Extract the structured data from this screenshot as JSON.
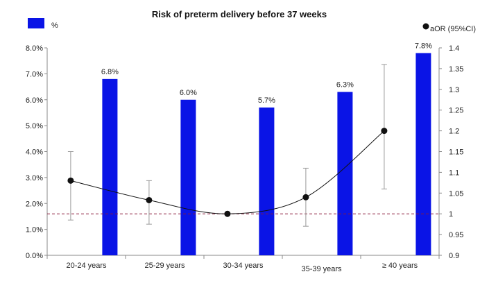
{
  "chart_data": {
    "type": "bar",
    "title": "Risk of preterm delivery before 37 weeks",
    "categories": [
      "20-24 years",
      "25-29 years",
      "30-34 years",
      "35-39 years",
      "≥ 40 years"
    ],
    "series": [
      {
        "name": "%",
        "axis": "left",
        "kind": "bar",
        "color": "#0a14e6",
        "values": [
          6.8,
          6.0,
          5.7,
          6.3,
          7.8
        ],
        "value_labels": [
          "6.8%",
          "6.0%",
          "5.7%",
          "6.3%",
          "7.8%"
        ]
      },
      {
        "name": "aOR (95%CI)",
        "axis": "right",
        "kind": "line-point",
        "color": "#111111",
        "values": [
          1.08,
          1.033,
          1.0,
          1.04,
          1.2
        ],
        "ci_low": [
          0.985,
          0.975,
          null,
          0.97,
          1.06
        ],
        "ci_high": [
          1.15,
          1.08,
          null,
          1.11,
          1.36
        ]
      }
    ],
    "left_axis": {
      "ylim": [
        0,
        8
      ],
      "ticks": [
        0,
        1,
        2,
        3,
        4,
        5,
        6,
        7,
        8
      ],
      "tick_labels": [
        "0.0%",
        "1.0%",
        "2.0%",
        "3.0%",
        "4.0%",
        "5.0%",
        "6.0%",
        "7.0%",
        "8.0%"
      ]
    },
    "right_axis": {
      "ylim": [
        0.9,
        1.4
      ],
      "ticks": [
        0.9,
        0.95,
        1.0,
        1.05,
        1.1,
        1.15,
        1.2,
        1.25,
        1.3,
        1.35,
        1.4
      ],
      "tick_labels": [
        "0.9",
        "0.95",
        "1",
        "1.05",
        "1.1",
        "1.15",
        "1.2",
        "1.25",
        "1.3",
        "1.35",
        "1.4"
      ],
      "reference_line": 1.0
    },
    "grid": false,
    "legend": [
      {
        "label": "%",
        "placement": "top-left",
        "marker": "square",
        "color": "#0a14e6"
      },
      {
        "label": "aOR (95%CI)",
        "placement": "top-right",
        "marker": "dot",
        "color": "#111111"
      }
    ],
    "colors": {
      "bar": "#0a14e6",
      "line": "#111111",
      "reference": "#8b1a3a",
      "axis": "#888888"
    }
  }
}
